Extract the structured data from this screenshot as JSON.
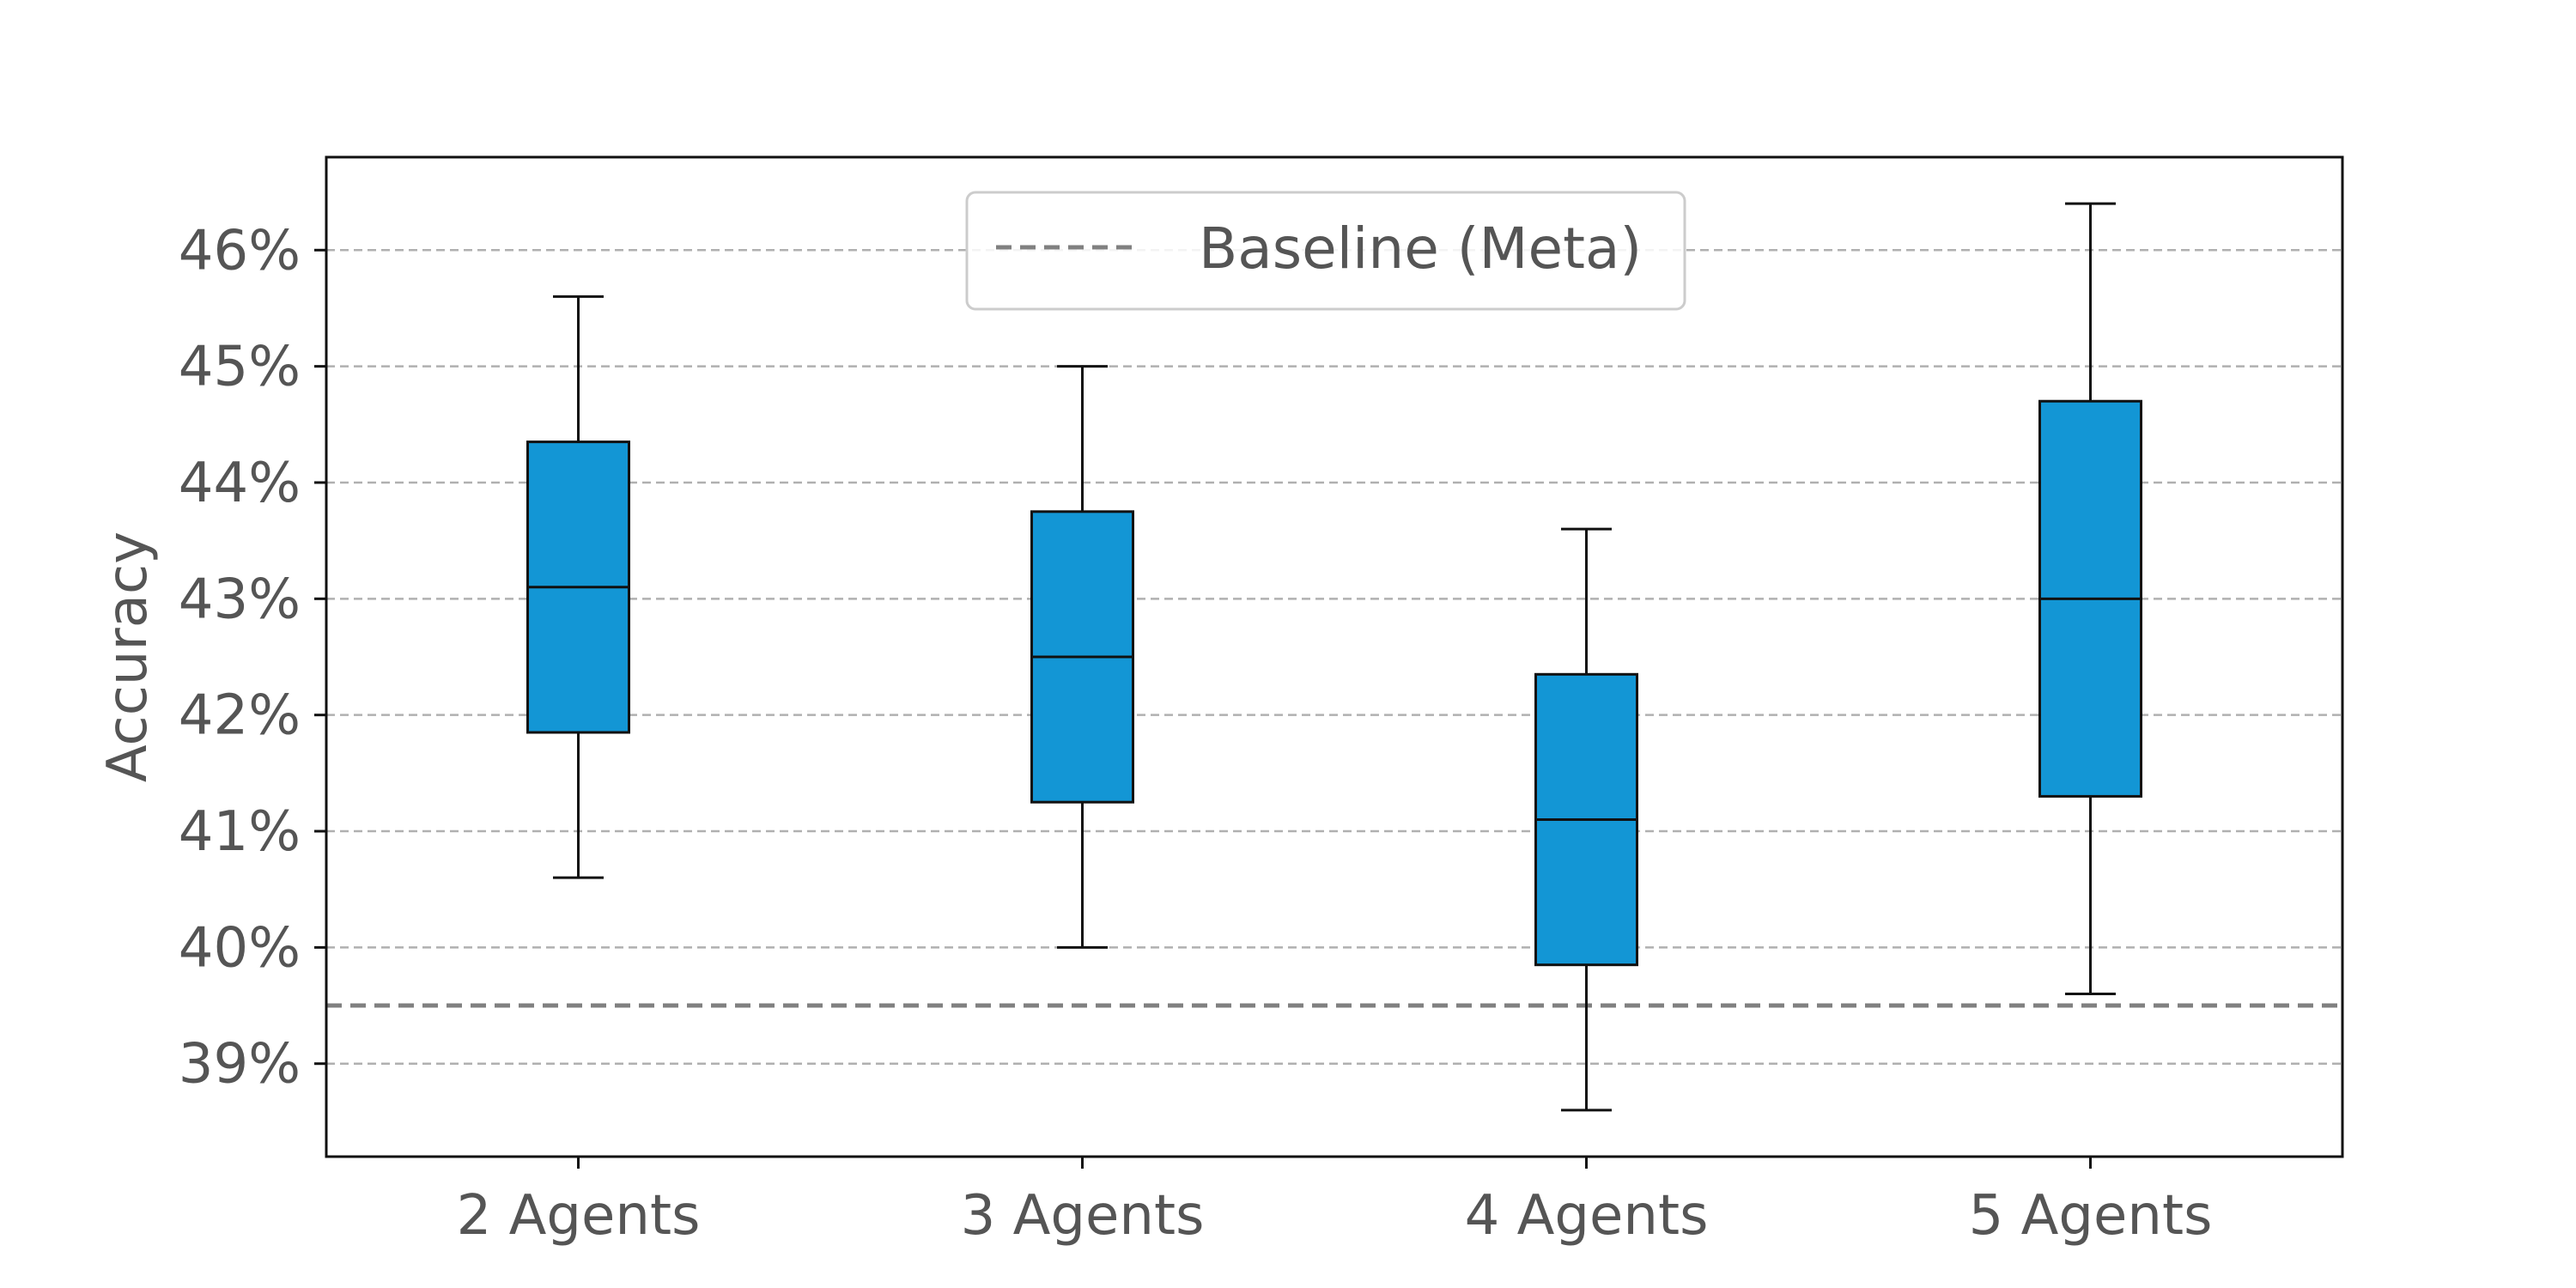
{
  "chart_data": {
    "type": "box",
    "categories": [
      "2 Agents",
      "3 Agents",
      "4 Agents",
      "5 Agents"
    ],
    "boxes": [
      {
        "category": "2 Agents",
        "whisker_low": 40.6,
        "q1": 41.85,
        "median": 43.1,
        "q3": 44.35,
        "whisker_high": 45.6
      },
      {
        "category": "3 Agents",
        "whisker_low": 40.0,
        "q1": 41.25,
        "median": 42.5,
        "q3": 43.75,
        "whisker_high": 45.0
      },
      {
        "category": "4 Agents",
        "whisker_low": 38.6,
        "q1": 39.85,
        "median": 41.1,
        "q3": 42.35,
        "whisker_high": 43.6
      },
      {
        "category": "5 Agents",
        "whisker_low": 39.6,
        "q1": 41.3,
        "median": 43.0,
        "q3": 44.7,
        "whisker_high": 46.4
      }
    ],
    "baseline": {
      "name": "Baseline (Meta)",
      "value": 39.5
    },
    "ylabel": "Accuracy",
    "xlabel": "",
    "ylim": [
      38.2,
      46.8
    ],
    "yticks": [
      39,
      40,
      41,
      42,
      43,
      44,
      45,
      46
    ],
    "ytick_labels": [
      "39%",
      "40%",
      "41%",
      "42%",
      "43%",
      "44%",
      "45%",
      "46%"
    ],
    "grid": "horizontal dashed",
    "legend_position": "top-center",
    "colors": {
      "box_fill": "#1396d5",
      "box_edge": "#111111",
      "baseline": "#808080",
      "grid": "#b0b0b0",
      "text": "#555555"
    }
  }
}
